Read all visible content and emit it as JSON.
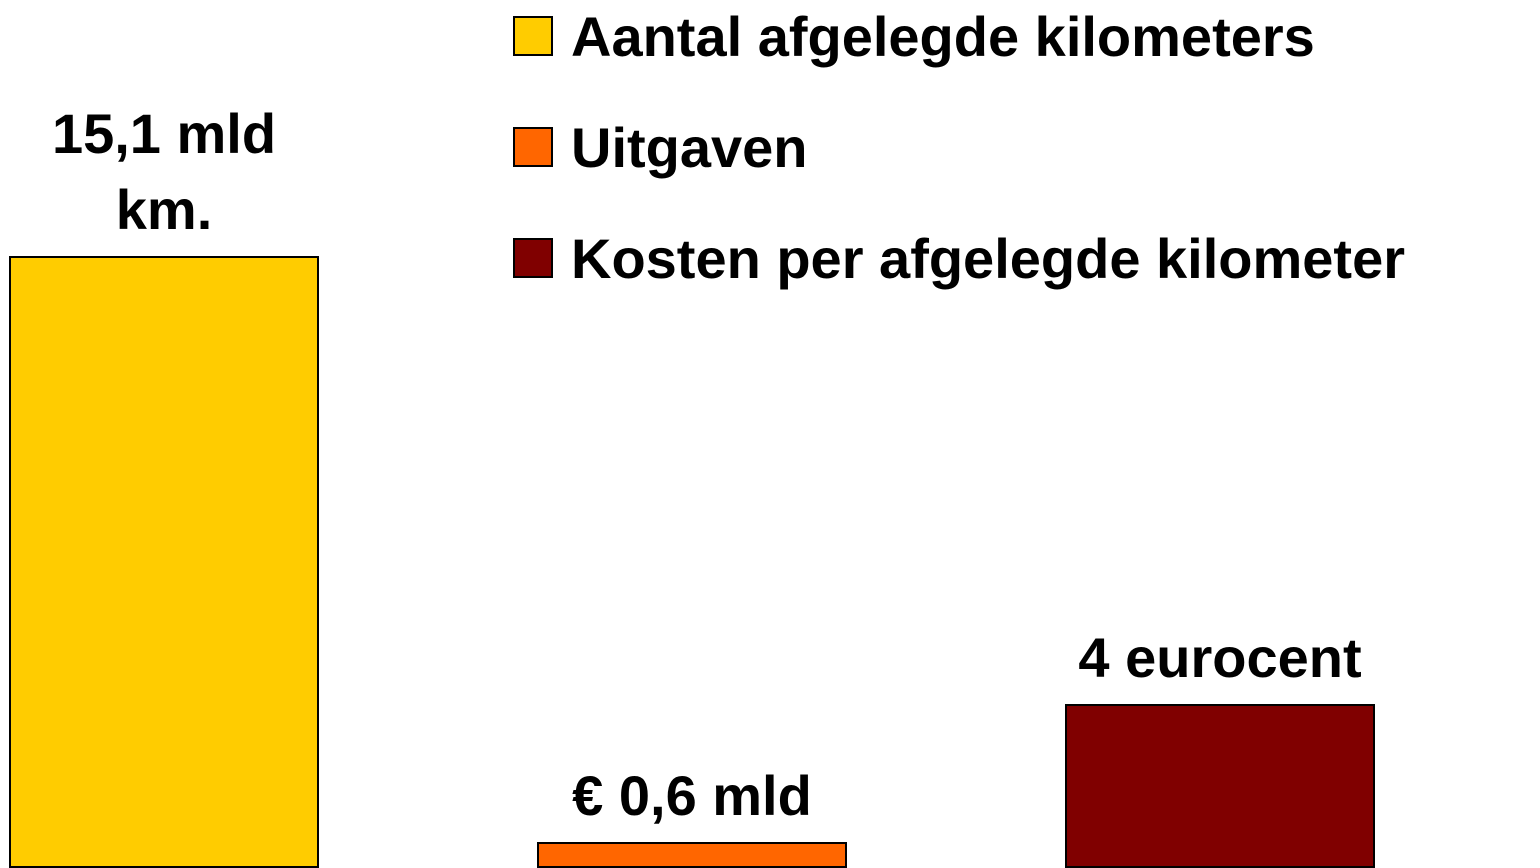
{
  "chart_data": {
    "type": "bar",
    "series": [
      {
        "name": "Aantal afgelegde kilometers",
        "color": "#ffcc00",
        "values": [
          15.1
        ],
        "value_labels": [
          "15,1 mld km."
        ]
      },
      {
        "name": "Uitgaven",
        "color": "#ff6600",
        "values": [
          0.6
        ],
        "value_labels": [
          "€ 0,6 mld"
        ]
      },
      {
        "name": "Kosten per afgelegde kilometer",
        "color": "#800000",
        "values": [
          4
        ],
        "value_labels": [
          "4 eurocent"
        ]
      }
    ],
    "legend": "top-right"
  }
}
